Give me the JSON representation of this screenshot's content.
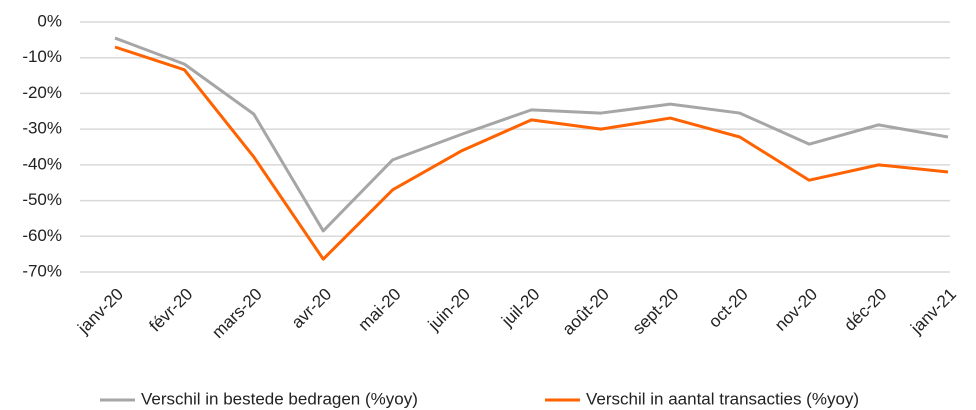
{
  "chart_data": {
    "type": "line",
    "categories": [
      "janv-20",
      "févr-20",
      "mars-20",
      "avr-20",
      "mai-20",
      "juin-20",
      "juil-20",
      "août-20",
      "sept-20",
      "oct-20",
      "nov-20",
      "déc-20",
      "janv-21"
    ],
    "series": [
      {
        "name": "Verschil in bestede bedragen (%yoy)",
        "color": "#a6a6a6",
        "values": [
          -4.5,
          -11.8,
          -25.8,
          -58.5,
          -38.6,
          -31.4,
          -24.6,
          -25.5,
          -23,
          -25.5,
          -34.2,
          -28.8,
          -32.2
        ]
      },
      {
        "name": "Verschil in aantal transacties (%yoy)",
        "color": "#ff6200",
        "values": [
          -7,
          -13.4,
          -37.8,
          -66.4,
          -47,
          -36,
          -27.4,
          -30,
          -26.9,
          -32.2,
          -44.3,
          -40,
          -42
        ]
      }
    ],
    "ylim": [
      -70,
      0
    ],
    "yticks": [
      {
        "value": 0,
        "label": "0%"
      },
      {
        "value": -10,
        "label": "-10%"
      },
      {
        "value": -20,
        "label": "-20%"
      },
      {
        "value": -30,
        "label": "-30%"
      },
      {
        "value": -40,
        "label": "-40%"
      },
      {
        "value": -50,
        "label": "-50%"
      },
      {
        "value": -60,
        "label": "-60%"
      },
      {
        "value": -70,
        "label": "-70%"
      }
    ],
    "grid": true
  }
}
